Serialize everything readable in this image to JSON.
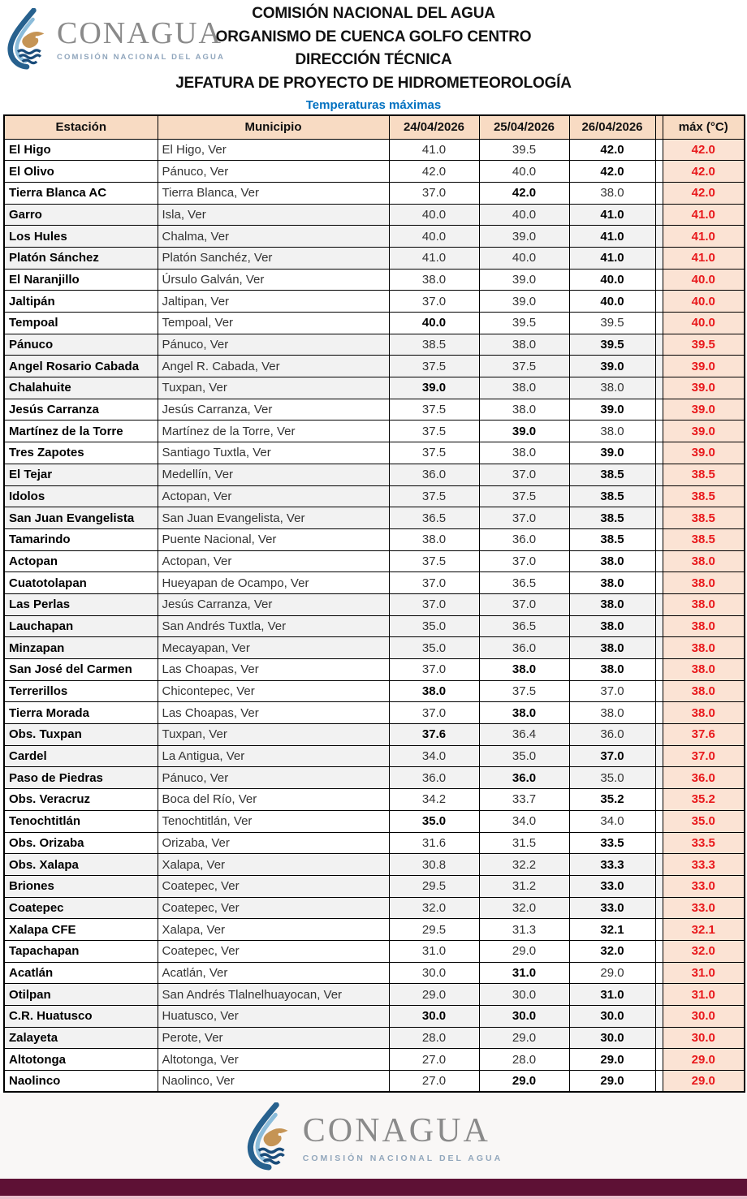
{
  "header": {
    "logo": {
      "name": "CONAGUA",
      "subtitle": "COMISIÓN NACIONAL DEL AGUA"
    },
    "title_lines": [
      "COMISIÓN NACIONAL DEL AGUA",
      "ORGANISMO DE CUENCA GOLFO CENTRO",
      "DIRECCIÓN TÉCNICA",
      "JEFATURA DE PROYECTO DE HIDROMETEOROLOGÍA"
    ],
    "subtitle": "Temperaturas máximas"
  },
  "table": {
    "columns": [
      "Estación",
      "Municipio",
      "24/04/2026",
      "25/04/2026",
      "26/04/2026",
      "máx (°C)"
    ],
    "rows": [
      {
        "station": "El Higo",
        "municipio": "El Higo, Ver",
        "values": [
          "41.0",
          "39.5",
          "42.0"
        ],
        "bold": [
          3
        ],
        "max": "42.0"
      },
      {
        "station": "El Olivo",
        "municipio": "Pánuco, Ver",
        "values": [
          "42.0",
          "40.0",
          "42.0"
        ],
        "bold": [
          3
        ],
        "max": "42.0"
      },
      {
        "station": "Tierra Blanca AC",
        "municipio": "Tierra Blanca, Ver",
        "values": [
          "37.0",
          "42.0",
          "38.0"
        ],
        "bold": [
          2
        ],
        "max": "42.0"
      },
      {
        "station": "Garro",
        "municipio": "Isla, Ver",
        "values": [
          "40.0",
          "40.0",
          "41.0"
        ],
        "bold": [
          3
        ],
        "max": "41.0"
      },
      {
        "station": "Los Hules",
        "municipio": "Chalma, Ver",
        "values": [
          "40.0",
          "39.0",
          "41.0"
        ],
        "bold": [
          3
        ],
        "max": "41.0"
      },
      {
        "station": "Platón Sánchez",
        "municipio": "Platón Sanchéz, Ver",
        "values": [
          "41.0",
          "40.0",
          "41.0"
        ],
        "bold": [
          3
        ],
        "max": "41.0"
      },
      {
        "station": "El Naranjillo",
        "municipio": "Úrsulo Galván, Ver",
        "values": [
          "38.0",
          "39.0",
          "40.0"
        ],
        "bold": [
          3
        ],
        "max": "40.0"
      },
      {
        "station": "Jaltipán",
        "municipio": "Jaltipan, Ver",
        "values": [
          "37.0",
          "39.0",
          "40.0"
        ],
        "bold": [
          3
        ],
        "max": "40.0"
      },
      {
        "station": "Tempoal",
        "municipio": "Tempoal, Ver",
        "values": [
          "40.0",
          "39.5",
          "39.5"
        ],
        "bold": [
          1
        ],
        "max": "40.0"
      },
      {
        "station": "Pánuco",
        "municipio": "Pánuco, Ver",
        "values": [
          "38.5",
          "38.0",
          "39.5"
        ],
        "bold": [
          3
        ],
        "max": "39.5"
      },
      {
        "station": "Angel Rosario Cabada",
        "municipio": "Angel R. Cabada, Ver",
        "values": [
          "37.5",
          "37.5",
          "39.0"
        ],
        "bold": [
          3
        ],
        "max": "39.0"
      },
      {
        "station": "Chalahuite",
        "municipio": "Tuxpan, Ver",
        "values": [
          "39.0",
          "38.0",
          "38.0"
        ],
        "bold": [
          1
        ],
        "max": "39.0"
      },
      {
        "station": "Jesús Carranza",
        "municipio": "Jesús Carranza, Ver",
        "values": [
          "37.5",
          "38.0",
          "39.0"
        ],
        "bold": [
          3
        ],
        "max": "39.0"
      },
      {
        "station": "Martínez de la Torre",
        "municipio": "Martínez de la Torre, Ver",
        "values": [
          "37.5",
          "39.0",
          "38.0"
        ],
        "bold": [
          2
        ],
        "max": "39.0"
      },
      {
        "station": "Tres Zapotes",
        "municipio": "Santiago Tuxtla, Ver",
        "values": [
          "37.5",
          "38.0",
          "39.0"
        ],
        "bold": [
          3
        ],
        "max": "39.0"
      },
      {
        "station": "El Tejar",
        "municipio": "Medellín, Ver",
        "values": [
          "36.0",
          "37.0",
          "38.5"
        ],
        "bold": [
          3
        ],
        "max": "38.5"
      },
      {
        "station": "Idolos",
        "municipio": "Actopan, Ver",
        "values": [
          "37.5",
          "37.5",
          "38.5"
        ],
        "bold": [
          3
        ],
        "max": "38.5"
      },
      {
        "station": "San Juan Evangelista",
        "municipio": "San Juan Evangelista, Ver",
        "values": [
          "36.5",
          "37.0",
          "38.5"
        ],
        "bold": [
          3
        ],
        "max": "38.5"
      },
      {
        "station": "Tamarindo",
        "municipio": "Puente Nacional, Ver",
        "values": [
          "38.0",
          "36.0",
          "38.5"
        ],
        "bold": [
          3
        ],
        "max": "38.5"
      },
      {
        "station": "Actopan",
        "municipio": "Actopan, Ver",
        "values": [
          "37.5",
          "37.0",
          "38.0"
        ],
        "bold": [
          3
        ],
        "max": "38.0"
      },
      {
        "station": "Cuatotolapan",
        "municipio": "Hueyapan de Ocampo, Ver",
        "values": [
          "37.0",
          "36.5",
          "38.0"
        ],
        "bold": [
          3
        ],
        "max": "38.0"
      },
      {
        "station": "Las Perlas",
        "municipio": "Jesús Carranza, Ver",
        "values": [
          "37.0",
          "37.0",
          "38.0"
        ],
        "bold": [
          3
        ],
        "max": "38.0"
      },
      {
        "station": "Lauchapan",
        "municipio": "San Andrés Tuxtla, Ver",
        "values": [
          "35.0",
          "36.5",
          "38.0"
        ],
        "bold": [
          3
        ],
        "max": "38.0"
      },
      {
        "station": "Minzapan",
        "municipio": "Mecayapan, Ver",
        "values": [
          "35.0",
          "36.0",
          "38.0"
        ],
        "bold": [
          3
        ],
        "max": "38.0"
      },
      {
        "station": "San José del Carmen",
        "municipio": "Las Choapas, Ver",
        "values": [
          "37.0",
          "38.0",
          "38.0"
        ],
        "bold": [
          2,
          3
        ],
        "max": "38.0"
      },
      {
        "station": "Terrerillos",
        "municipio": "Chicontepec, Ver",
        "values": [
          "38.0",
          "37.5",
          "37.0"
        ],
        "bold": [
          1
        ],
        "max": "38.0"
      },
      {
        "station": "Tierra Morada",
        "municipio": "Las Choapas, Ver",
        "values": [
          "37.0",
          "38.0",
          "38.0"
        ],
        "bold": [
          2
        ],
        "max": "38.0"
      },
      {
        "station": "Obs. Tuxpan",
        "municipio": "Tuxpan, Ver",
        "values": [
          "37.6",
          "36.4",
          "36.0"
        ],
        "bold": [
          1
        ],
        "max": "37.6"
      },
      {
        "station": "Cardel",
        "municipio": "La Antigua, Ver",
        "values": [
          "34.0",
          "35.0",
          "37.0"
        ],
        "bold": [
          3
        ],
        "max": "37.0"
      },
      {
        "station": "Paso de Piedras",
        "municipio": "Pánuco, Ver",
        "values": [
          "36.0",
          "36.0",
          "35.0"
        ],
        "bold": [
          2
        ],
        "max": "36.0"
      },
      {
        "station": "Obs. Veracruz",
        "municipio": "Boca del Río, Ver",
        "values": [
          "34.2",
          "33.7",
          "35.2"
        ],
        "bold": [
          3
        ],
        "max": "35.2"
      },
      {
        "station": "Tenochtitlán",
        "municipio": "Tenochtitlán, Ver",
        "values": [
          "35.0",
          "34.0",
          "34.0"
        ],
        "bold": [
          1
        ],
        "max": "35.0"
      },
      {
        "station": "Obs. Orizaba",
        "municipio": "Orizaba, Ver",
        "values": [
          "31.6",
          "31.5",
          "33.5"
        ],
        "bold": [
          3
        ],
        "max": "33.5"
      },
      {
        "station": "Obs. Xalapa",
        "municipio": "Xalapa, Ver",
        "values": [
          "30.8",
          "32.2",
          "33.3"
        ],
        "bold": [
          3
        ],
        "max": "33.3"
      },
      {
        "station": "Briones",
        "municipio": "Coatepec, Ver",
        "values": [
          "29.5",
          "31.2",
          "33.0"
        ],
        "bold": [
          3
        ],
        "max": "33.0"
      },
      {
        "station": "Coatepec",
        "municipio": "Coatepec, Ver",
        "values": [
          "32.0",
          "32.0",
          "33.0"
        ],
        "bold": [
          3
        ],
        "max": "33.0"
      },
      {
        "station": "Xalapa CFE",
        "municipio": "Xalapa, Ver",
        "values": [
          "29.5",
          "31.3",
          "32.1"
        ],
        "bold": [
          3
        ],
        "max": "32.1"
      },
      {
        "station": "Tapachapan",
        "municipio": "Coatepec, Ver",
        "values": [
          "31.0",
          "29.0",
          "32.0"
        ],
        "bold": [
          3
        ],
        "max": "32.0"
      },
      {
        "station": "Acatlán",
        "municipio": "Acatlán, Ver",
        "values": [
          "30.0",
          "31.0",
          "29.0"
        ],
        "bold": [
          2
        ],
        "max": "31.0"
      },
      {
        "station": "Otilpan",
        "municipio": "San Andrés Tlalnelhuayocan, Ver",
        "values": [
          "29.0",
          "30.0",
          "31.0"
        ],
        "bold": [
          3
        ],
        "max": "31.0"
      },
      {
        "station": "C.R. Huatusco",
        "municipio": "Huatusco, Ver",
        "values": [
          "30.0",
          "30.0",
          "30.0"
        ],
        "bold": [
          1,
          2,
          3
        ],
        "max": "30.0"
      },
      {
        "station": "Zalayeta",
        "municipio": "Perote, Ver",
        "values": [
          "28.0",
          "29.0",
          "30.0"
        ],
        "bold": [
          3
        ],
        "max": "30.0"
      },
      {
        "station": "Altotonga",
        "municipio": "Altotonga, Ver",
        "values": [
          "27.0",
          "28.0",
          "29.0"
        ],
        "bold": [
          3
        ],
        "max": "29.0"
      },
      {
        "station": "Naolinco",
        "municipio": "Naolinco, Ver",
        "values": [
          "27.0",
          "29.0",
          "29.0"
        ],
        "bold": [
          2,
          3
        ],
        "max": "29.0"
      }
    ]
  },
  "footer": {
    "logo": {
      "name": "CONAGUA",
      "subtitle": "COMISIÓN NACIONAL DEL AGUA"
    }
  },
  "colors": {
    "header_bg": "#f8dbc3",
    "max_col_bg": "#fbe3d4",
    "band_white": "#ffffff",
    "band_gray": "#f2f2f2",
    "max_text_red": "#e8191c",
    "subtitle_blue": "#0070c0",
    "maroon_bar": "#5e1135",
    "pink_strip": "#eabfcc"
  }
}
